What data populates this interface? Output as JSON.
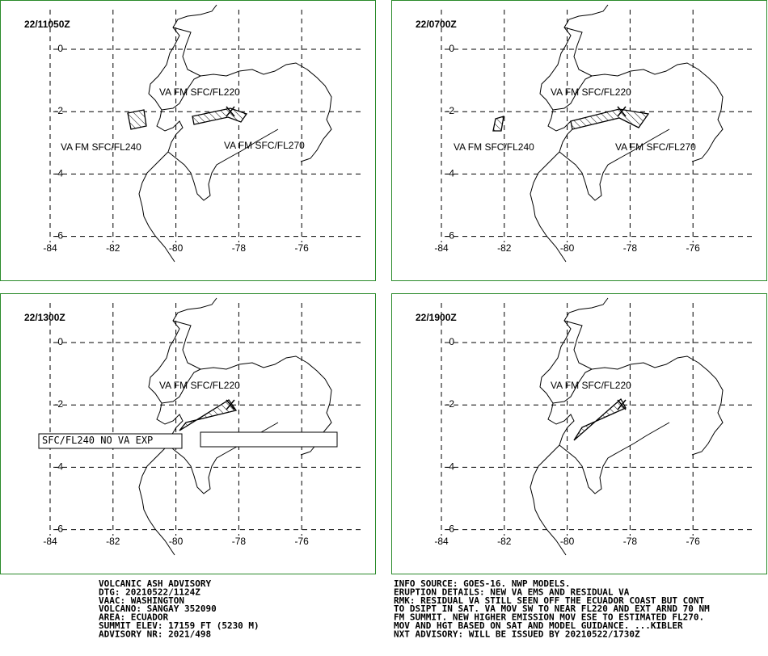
{
  "panels": [
    {
      "time": "22/11050Z",
      "labels": [
        "VA FM SFC/FL220",
        "VA FM SFC/FL240",
        "VA FM SFC/FL270"
      ]
    },
    {
      "time": "22/0700Z",
      "labels": [
        "VA FM SFC/FL220",
        "VA FM SFC/FL240",
        "VA FM SFC/FL270"
      ]
    },
    {
      "time": "22/1300Z",
      "labels": [
        "VA FM SFC/FL220",
        "SFC/FL240 NO VA EXP"
      ]
    },
    {
      "time": "22/1900Z",
      "labels": [
        "VA FM SFC/FL220"
      ]
    }
  ],
  "axes": {
    "lon_ticks": [
      -84,
      -82,
      -80,
      -78,
      -76
    ],
    "lat_ticks": [
      0,
      -2,
      -4,
      -6
    ]
  },
  "advisory": {
    "left": [
      "VOLCANIC ASH ADVISORY",
      "DTG: 20210522/1124Z",
      "VAAC: WASHINGTON",
      "VOLCANO: SANGAY 352090",
      "AREA: ECUADOR",
      "SUMMIT ELEV: 17159 FT (5230 M)",
      "ADVISORY NR: 2021/498"
    ],
    "right": [
      "INFO SOURCE: GOES-16. NWP MODELS.",
      "ERUPTION DETAILS: NEW VA EMS AND RESIDUAL VA",
      "RMK: RESIDUAL VA STILL SEEN OFF THE ECUADOR COAST BUT CONT",
      "TO DSIPT IN SAT. VA MOV SW TO NEAR FL220 AND EXT ARND 70 NM",
      "FM SUMMIT. NEW HIGHER EMISSION MOV ESE TO ESTIMATED FL270.",
      "MOV AND HGT BASED ON SAT AND MODEL GUIDANCE. ...KIBLER",
      "NXT ADVISORY: WILL BE ISSUED BY 20210522/1730Z"
    ]
  }
}
